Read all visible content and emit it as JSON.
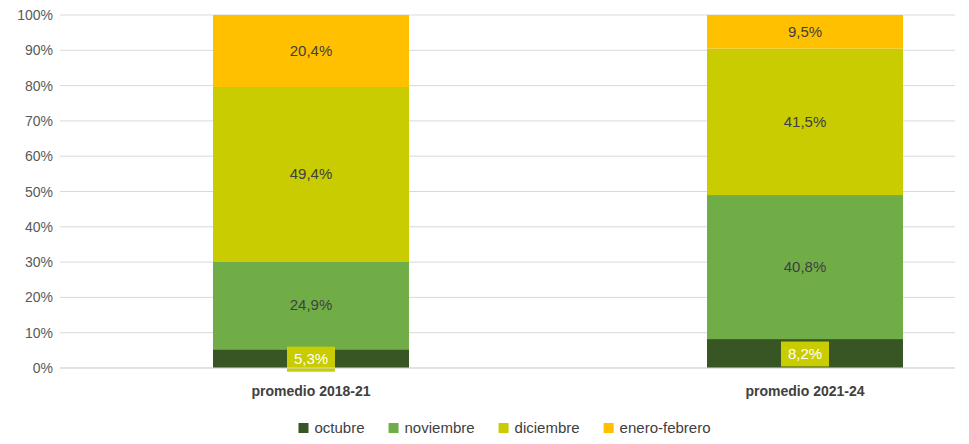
{
  "chart_data": {
    "type": "bar",
    "stacked": true,
    "data_labels": true,
    "grid": true,
    "legend": "bottom",
    "categories": [
      "promedio 2018-21",
      "promedio 2021-24"
    ],
    "ylim": [
      0,
      100
    ],
    "yticks": [
      {
        "value": 0,
        "label": "0%"
      },
      {
        "value": 10,
        "label": "10%"
      },
      {
        "value": 20,
        "label": "20%"
      },
      {
        "value": 30,
        "label": "30%"
      },
      {
        "value": 40,
        "label": "40%"
      },
      {
        "value": 50,
        "label": "50%"
      },
      {
        "value": 60,
        "label": "60%"
      },
      {
        "value": 70,
        "label": "70%"
      },
      {
        "value": 80,
        "label": "80%"
      },
      {
        "value": 90,
        "label": "90%"
      },
      {
        "value": 100,
        "label": "100%"
      }
    ],
    "series": [
      {
        "name": "octubre",
        "color": "#375623",
        "values": [
          5.3,
          8.2
        ],
        "value_labels": [
          "5,3%",
          "8,2%"
        ]
      },
      {
        "name": "noviembre",
        "color": "#70ad47",
        "values": [
          24.9,
          40.8
        ],
        "value_labels": [
          "24,9%",
          "40,8%"
        ]
      },
      {
        "name": "diciembre",
        "color": "#c8cc00",
        "values": [
          49.4,
          41.5
        ],
        "value_labels": [
          "49,4%",
          "41,5%"
        ]
      },
      {
        "name": "enero-febrero",
        "color": "#ffc000",
        "values": [
          20.4,
          9.5
        ],
        "value_labels": [
          "20,4%",
          "9,5%"
        ]
      }
    ]
  }
}
